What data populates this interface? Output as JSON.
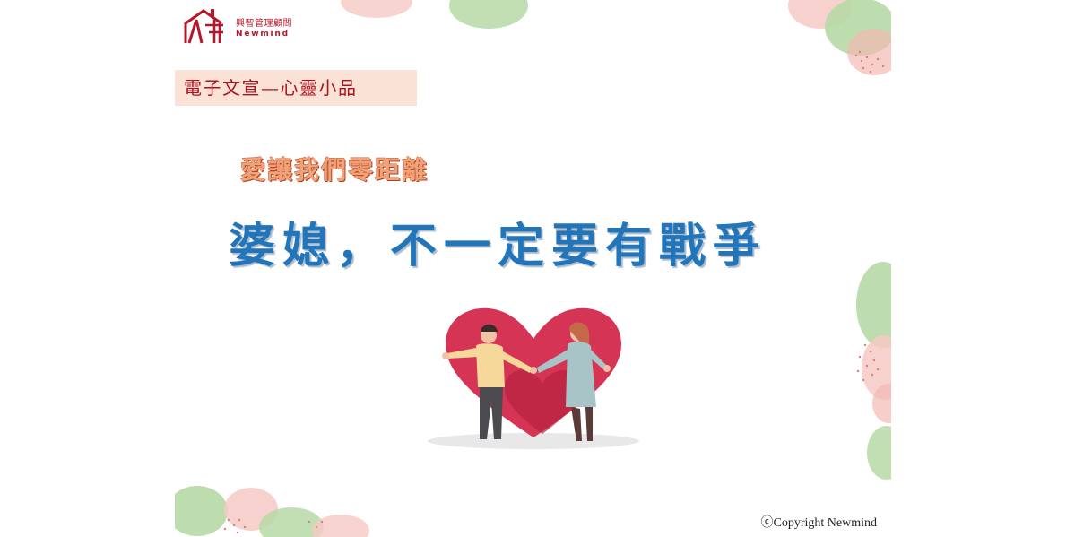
{
  "logo": {
    "name_cn": "興智管理顧問",
    "name_en": "Newmind"
  },
  "banner": {
    "text": "電子文宣—心靈小品"
  },
  "subtitle": "愛讓我們零距離",
  "title": "婆媳，不一定要有戰爭",
  "copyright": "ⓒCopyright Newmind",
  "colors": {
    "brand_red": "#b5172a",
    "title_blue": "#2175b8",
    "subtitle_orange": "#f0a278",
    "banner_bg": "#fae3d6",
    "heart_red": "#d63455"
  },
  "illustration": {
    "description_icon": "couple-heart-illustration"
  }
}
